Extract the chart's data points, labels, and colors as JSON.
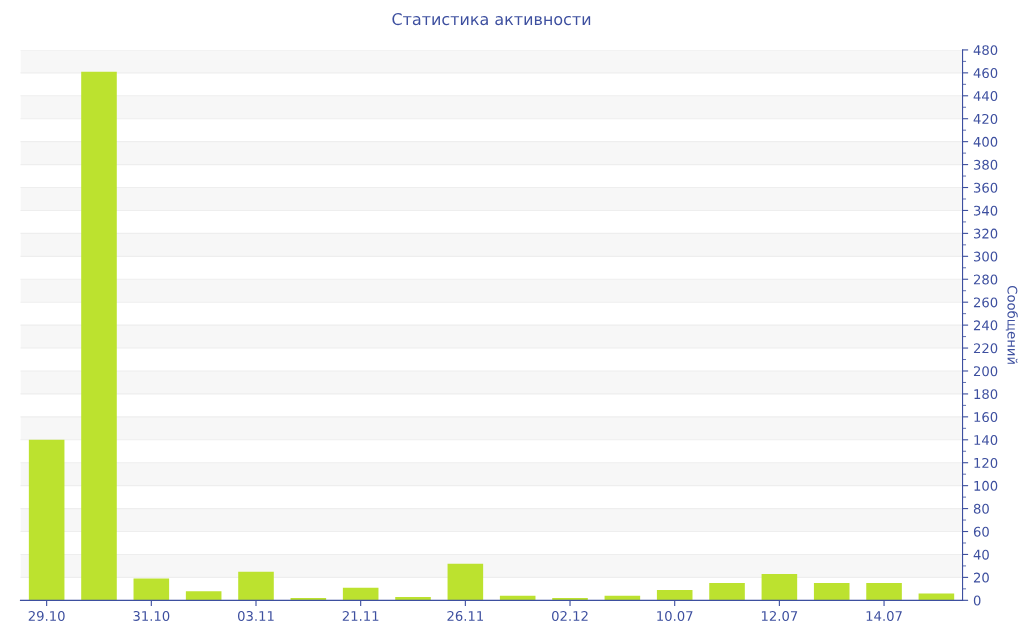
{
  "chart_data": {
    "type": "bar",
    "title": "Статистика активности",
    "ylabel": "Сообщений",
    "categories": [
      "29.10",
      null,
      "31.10",
      null,
      "03.11",
      null,
      "21.11",
      null,
      "26.11",
      null,
      "02.12",
      null,
      "10.07",
      null,
      "12.07",
      null,
      "14.07",
      null
    ],
    "values": [
      140,
      461,
      19,
      8,
      25,
      2,
      11,
      3,
      32,
      4,
      2,
      4,
      9,
      15,
      23,
      15,
      15,
      6
    ],
    "color": "#bce22f",
    "ylim": [
      0,
      480
    ],
    "yticks": [
      0,
      20,
      40,
      60,
      80,
      100,
      120,
      140,
      160,
      180,
      200,
      220,
      240,
      260,
      280,
      300,
      320,
      340,
      360,
      380,
      400,
      420,
      440,
      460,
      480
    ],
    "grid": "y"
  }
}
